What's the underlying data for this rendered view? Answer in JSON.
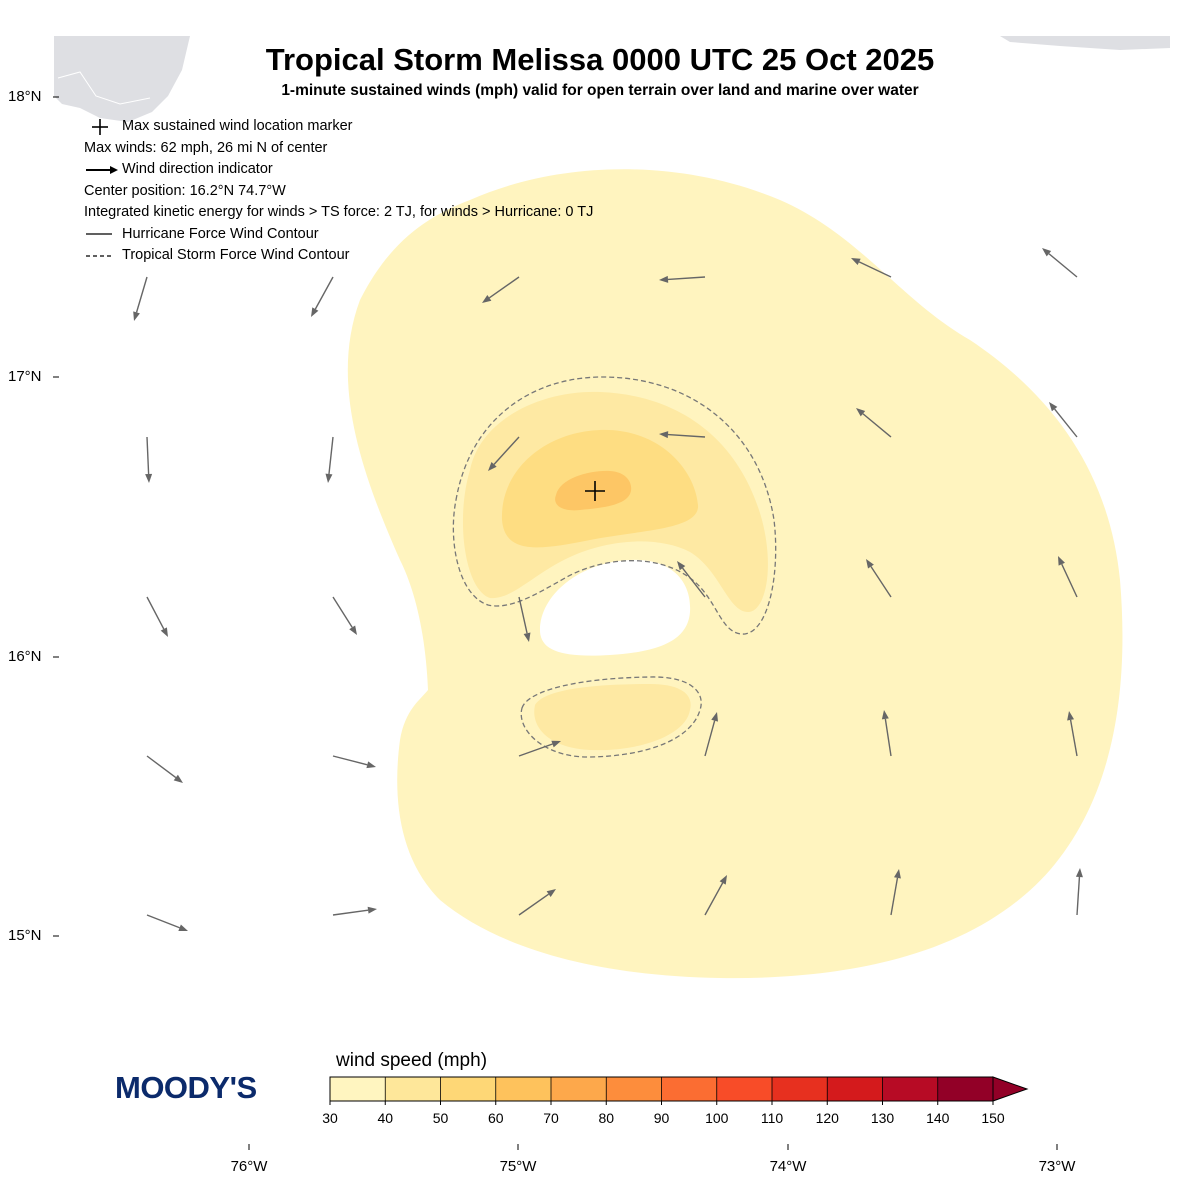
{
  "header": {
    "title": "Tropical Storm Melissa 0000 UTC 25 Oct 2025",
    "subtitle": "1-minute sustained winds (mph) valid for open terrain over land and marine over water"
  },
  "legend": {
    "max_marker_label": "Max sustained wind location marker",
    "max_winds": "Max winds: 62 mph, 26 mi N of center",
    "wind_dir_label": "Wind direction indicator",
    "center_position": "Center position: 16.2°N 74.7°W",
    "ike": "Integrated kinetic energy for winds > TS force: 2 TJ, for winds > Hurricane: 0 TJ",
    "hurricane_contour_label": "Hurricane Force Wind Contour",
    "ts_contour_label": "Tropical Storm Force Wind Contour"
  },
  "axes": {
    "lat_ticks": [
      "18°N",
      "17°N",
      "16°N",
      "15°N"
    ],
    "lon_ticks": [
      "76°W",
      "75°W",
      "74°W",
      "73°W"
    ]
  },
  "colorbar": {
    "label": "wind speed (mph)",
    "ticks": [
      "30",
      "40",
      "50",
      "60",
      "70",
      "80",
      "90",
      "100",
      "110",
      "120",
      "130",
      "140",
      "150"
    ],
    "colors": [
      "#fff5c0",
      "#fee79a",
      "#fed776",
      "#fec25c",
      "#fda84b",
      "#fd8d3c",
      "#fb6d32",
      "#f84c28",
      "#e7301f",
      "#d41a1c",
      "#b70b25",
      "#920027"
    ]
  },
  "logo": {
    "text": "MOODY'S"
  },
  "storm": {
    "center_lat": 16.2,
    "center_lon": -74.7,
    "max_wind_mph": 62
  },
  "colors": {
    "land": "#dedfe3",
    "arrow": "#666666",
    "contour": "#777777",
    "logo": "#0b2a6b"
  }
}
